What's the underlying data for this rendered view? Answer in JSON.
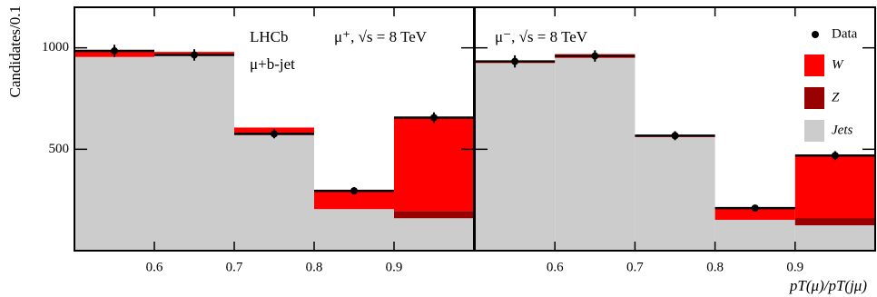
{
  "chart_data": [
    {
      "type": "histogram",
      "y_label": "Candidates/0.1",
      "annotations": [
        "LHCb",
        "μ+b-jet",
        "μ⁺, √s = 8 TeV"
      ],
      "bins": [
        0.5,
        0.6,
        0.7,
        0.8,
        0.9,
        1.0
      ],
      "series": [
        {
          "name": "Jets",
          "color": "#cccccc",
          "values": [
            955,
            965,
            570,
            205,
            160
          ]
        },
        {
          "name": "Z",
          "color": "#990000",
          "values": [
            0,
            0,
            0,
            0,
            36
          ]
        },
        {
          "name": "W",
          "color": "#ff0000",
          "values": [
            30,
            15,
            37,
            90,
            460
          ]
        }
      ],
      "data": {
        "name": "Data",
        "values": [
          985,
          965,
          576,
          295,
          656
        ],
        "errors": [
          30,
          28,
          22,
          18,
          26
        ]
      },
      "xlim": [
        0.5,
        1.0
      ],
      "xticks": [
        0.6,
        0.7,
        0.8,
        0.9
      ],
      "ylim": [
        0,
        1200
      ],
      "yticks": [
        500,
        1000
      ],
      "ytick_labels": true,
      "legend": false
    },
    {
      "type": "histogram",
      "x_label": "pT(μ)/pT(jμ)",
      "annotations": [
        "μ⁻, √s = 8 TeV"
      ],
      "bins": [
        0.5,
        0.6,
        0.7,
        0.8,
        0.9,
        1.0
      ],
      "series": [
        {
          "name": "Jets",
          "color": "#cccccc",
          "values": [
            925,
            950,
            560,
            152,
            125
          ]
        },
        {
          "name": "Z",
          "color": "#990000",
          "values": [
            0,
            0,
            0,
            0,
            36
          ]
        },
        {
          "name": "W",
          "color": "#ff0000",
          "values": [
            8,
            19,
            7,
            58,
            308
          ]
        }
      ],
      "data": {
        "name": "Data",
        "values": [
          933,
          960,
          567,
          210,
          469
        ],
        "errors": [
          30,
          28,
          22,
          16,
          22
        ]
      },
      "xlim": [
        0.5,
        1.0
      ],
      "xticks": [
        0.6,
        0.7,
        0.8,
        0.9
      ],
      "ylim": [
        0,
        1200
      ],
      "yticks": [
        500,
        1000
      ],
      "ytick_labels": false,
      "legend": "upper right"
    }
  ]
}
